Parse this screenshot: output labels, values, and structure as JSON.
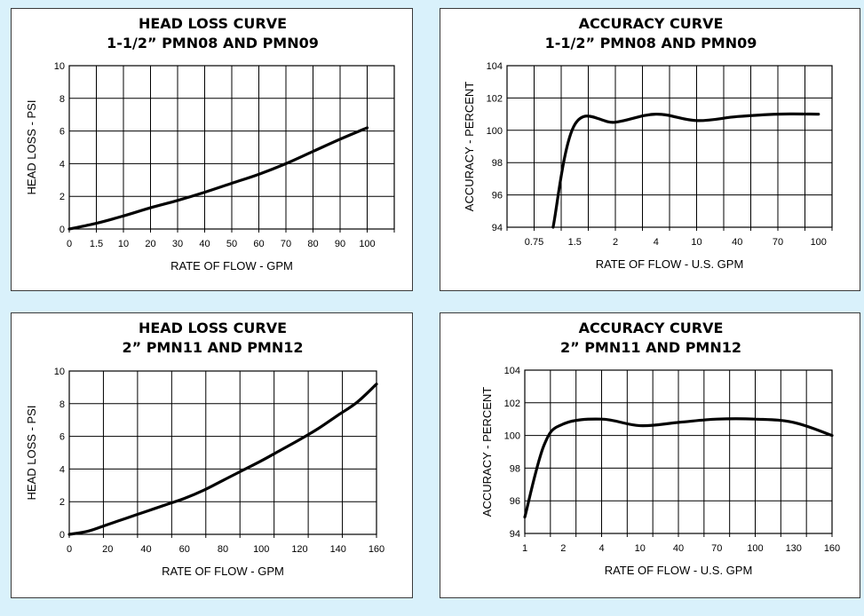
{
  "chart_data": [
    {
      "type": "line",
      "title": [
        "HEAD LOSS CURVE",
        "1-1/2” PMN08 AND PMN09"
      ],
      "xlabel": "RATE OF FLOW - GPM",
      "ylabel": "HEAD LOSS - PSI",
      "x_ticks": [
        "0",
        "1.5",
        "10",
        "20",
        "30",
        "40",
        "50",
        "60",
        "70",
        "80",
        "90",
        "100"
      ],
      "y_ticks": [
        "0",
        "2",
        "4",
        "6",
        "8",
        "10"
      ],
      "ylim": [
        0,
        10
      ],
      "grid": true,
      "series": [
        {
          "name": "head loss",
          "x": [
            0,
            1.5,
            10,
            20,
            30,
            40,
            50,
            60,
            70,
            80,
            90,
            100
          ],
          "y": [
            0,
            0.35,
            0.8,
            1.3,
            1.75,
            2.25,
            2.8,
            3.35,
            4.0,
            4.75,
            5.5,
            6.2
          ]
        }
      ]
    },
    {
      "type": "line",
      "title": [
        "ACCURACY CURVE",
        "1-1/2” PMN08 AND PMN09"
      ],
      "xlabel": "RATE OF FLOW - U.S. GPM",
      "ylabel": "ACCURACY - PERCENT",
      "x_ticks": [
        "0.75",
        "1.5",
        "2",
        "4",
        "10",
        "40",
        "70",
        "100"
      ],
      "y_ticks": [
        "94",
        "96",
        "98",
        "100",
        "102",
        "104"
      ],
      "ylim": [
        94,
        104
      ],
      "grid": true,
      "series": [
        {
          "name": "accuracy",
          "x": [
            "1.1",
            "1.5",
            "2",
            "4",
            "10",
            "40",
            "70",
            "100"
          ],
          "y": [
            94.0,
            100.35,
            100.5,
            101.0,
            100.6,
            100.85,
            101.0,
            101.0
          ]
        }
      ]
    },
    {
      "type": "line",
      "title": [
        "HEAD LOSS CURVE",
        "2” PMN11 AND PMN12"
      ],
      "xlabel": "RATE OF FLOW - GPM",
      "ylabel": "HEAD LOSS - PSI",
      "x_ticks": [
        "0",
        "20",
        "40",
        "60",
        "80",
        "100",
        "120",
        "140",
        "160"
      ],
      "y_ticks": [
        "0",
        "2",
        "4",
        "6",
        "8",
        "10"
      ],
      "ylim": [
        0,
        10
      ],
      "xlim": [
        0,
        160
      ],
      "grid": true,
      "series": [
        {
          "name": "head loss",
          "x": [
            0,
            10,
            20,
            30,
            40,
            50,
            60,
            70,
            80,
            90,
            100,
            110,
            120,
            130,
            140,
            150,
            160
          ],
          "y": [
            0,
            0.2,
            0.6,
            1.0,
            1.4,
            1.8,
            2.2,
            2.7,
            3.3,
            3.9,
            4.5,
            5.15,
            5.8,
            6.5,
            7.3,
            8.1,
            9.2
          ]
        }
      ]
    },
    {
      "type": "line",
      "title": [
        "ACCURACY CURVE",
        "2” PMN11 AND PMN12"
      ],
      "xlabel": "RATE OF FLOW - U.S. GPM",
      "ylabel": "ACCURACY - PERCENT",
      "x_ticks": [
        "1",
        "2",
        "4",
        "10",
        "40",
        "70",
        "100",
        "130",
        "160"
      ],
      "y_ticks": [
        "94",
        "96",
        "98",
        "100",
        "102",
        "104"
      ],
      "ylim": [
        94,
        104
      ],
      "grid": true,
      "series": [
        {
          "name": "accuracy",
          "x": [
            "1",
            "1.5",
            "2",
            "4",
            "10",
            "40",
            "70",
            "100",
            "130",
            "160"
          ],
          "y": [
            95.0,
            99.4,
            100.7,
            101.0,
            100.6,
            100.8,
            101.0,
            101.0,
            100.8,
            100.0
          ]
        }
      ]
    }
  ]
}
